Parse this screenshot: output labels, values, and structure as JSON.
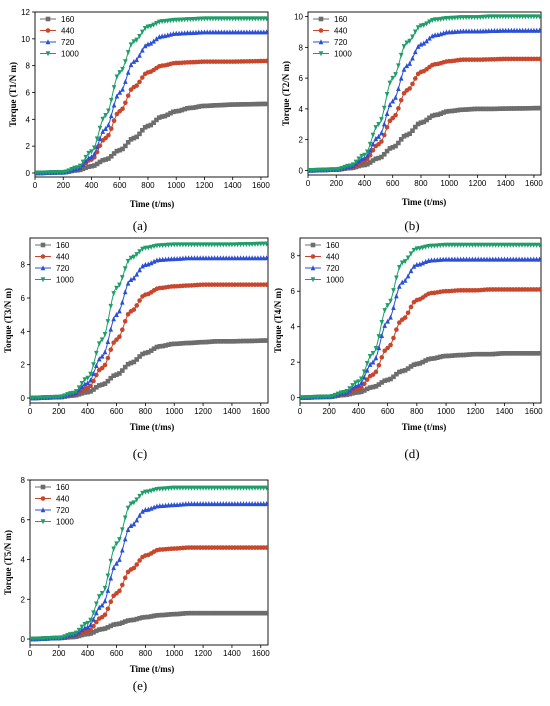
{
  "legend_title": "",
  "series_styles": [
    {
      "name": "160",
      "color": "#6d6d6d",
      "marker": "square"
    },
    {
      "name": "440",
      "color": "#c8462b",
      "marker": "circle"
    },
    {
      "name": "720",
      "color": "#2b4fd6",
      "marker": "triangle-up"
    },
    {
      "name": "1000",
      "color": "#1f9e6a",
      "marker": "triangle-down"
    }
  ],
  "chart_data": [
    {
      "type": "line",
      "panel_label": "(a)",
      "xlabel": "Time (t/ms)",
      "ylabel": "Torque (T1/N m)",
      "xlim": [
        0,
        1650
      ],
      "ylim": [
        -0.3,
        12
      ],
      "xticks": [
        0,
        200,
        400,
        600,
        800,
        1000,
        1200,
        1400,
        1600
      ],
      "yticks": [
        0,
        2,
        4,
        6,
        8,
        10,
        12
      ],
      "series": [
        {
          "name": "160",
          "x": [
            0,
            200,
            300,
            400,
            500,
            600,
            700,
            800,
            900,
            1000,
            1100,
            1200,
            1300,
            1400,
            1500,
            1650
          ],
          "y": [
            0,
            0.05,
            0.2,
            0.5,
            1.0,
            1.7,
            2.6,
            3.5,
            4.2,
            4.6,
            4.85,
            5.0,
            5.05,
            5.1,
            5.12,
            5.15
          ]
        },
        {
          "name": "440",
          "x": [
            0,
            200,
            300,
            400,
            500,
            600,
            700,
            800,
            900,
            1000,
            1100,
            1200,
            1300,
            1400,
            1500,
            1650
          ],
          "y": [
            0,
            0.05,
            0.3,
            1.0,
            2.6,
            4.6,
            6.4,
            7.5,
            8.0,
            8.2,
            8.25,
            8.3,
            8.3,
            8.3,
            8.32,
            8.35
          ]
        },
        {
          "name": "720",
          "x": [
            0,
            200,
            300,
            400,
            500,
            600,
            700,
            800,
            900,
            1000,
            1100,
            1200,
            1300,
            1400,
            1500,
            1650
          ],
          "y": [
            0,
            0.05,
            0.3,
            1.2,
            3.3,
            6.0,
            8.3,
            9.6,
            10.2,
            10.4,
            10.45,
            10.5,
            10.5,
            10.5,
            10.5,
            10.5
          ]
        },
        {
          "name": "1000",
          "x": [
            0,
            200,
            300,
            400,
            500,
            600,
            700,
            800,
            900,
            1000,
            1100,
            1200,
            1300,
            1400,
            1500,
            1650
          ],
          "y": [
            0,
            0.05,
            0.4,
            1.6,
            4.3,
            7.5,
            9.8,
            10.9,
            11.3,
            11.4,
            11.45,
            11.5,
            11.5,
            11.5,
            11.5,
            11.5
          ]
        }
      ]
    },
    {
      "type": "line",
      "panel_label": "(b)",
      "xlabel": "Time (t/ms)",
      "ylabel": "Torque (T2/N m)",
      "xlim": [
        0,
        1650
      ],
      "ylim": [
        -0.3,
        10.3
      ],
      "xticks": [
        0,
        200,
        400,
        600,
        800,
        1000,
        1200,
        1400,
        1600
      ],
      "yticks": [
        0,
        2,
        4,
        6,
        8,
        10
      ],
      "series": [
        {
          "name": "160",
          "x": [
            0,
            200,
            300,
            400,
            500,
            600,
            700,
            800,
            900,
            1000,
            1100,
            1200,
            1300,
            1400,
            1500,
            1650
          ],
          "y": [
            0,
            0.05,
            0.15,
            0.35,
            0.8,
            1.5,
            2.3,
            3.1,
            3.6,
            3.85,
            3.95,
            4.0,
            4.0,
            4.02,
            4.03,
            4.05
          ]
        },
        {
          "name": "440",
          "x": [
            0,
            200,
            300,
            400,
            500,
            600,
            700,
            800,
            900,
            1000,
            1100,
            1200,
            1300,
            1400,
            1500,
            1650
          ],
          "y": [
            0,
            0.05,
            0.2,
            0.6,
            1.7,
            3.4,
            5.2,
            6.4,
            6.9,
            7.1,
            7.2,
            7.2,
            7.22,
            7.25,
            7.25,
            7.25
          ]
        },
        {
          "name": "720",
          "x": [
            0,
            200,
            300,
            400,
            500,
            600,
            700,
            800,
            900,
            1000,
            1100,
            1200,
            1300,
            1400,
            1500,
            1650
          ],
          "y": [
            0,
            0.05,
            0.25,
            0.8,
            2.2,
            4.5,
            6.8,
            8.2,
            8.8,
            9.0,
            9.05,
            9.05,
            9.08,
            9.1,
            9.1,
            9.1
          ]
        },
        {
          "name": "1000",
          "x": [
            0,
            200,
            300,
            400,
            500,
            600,
            700,
            800,
            900,
            1000,
            1100,
            1200,
            1300,
            1400,
            1500,
            1650
          ],
          "y": [
            0,
            0.05,
            0.3,
            1.0,
            3.0,
            6.0,
            8.3,
            9.4,
            9.8,
            9.9,
            9.95,
            9.95,
            10.0,
            10.0,
            10.0,
            10.0
          ]
        }
      ]
    },
    {
      "type": "line",
      "panel_label": "(c)",
      "xlabel": "Time (t/ms)",
      "ylabel": "Torque (T3/N m)",
      "xlim": [
        0,
        1650
      ],
      "ylim": [
        -0.3,
        9.6
      ],
      "xticks": [
        0,
        200,
        400,
        600,
        800,
        1000,
        1200,
        1400,
        1600
      ],
      "yticks": [
        0,
        2,
        4,
        6,
        8
      ],
      "series": [
        {
          "name": "160",
          "x": [
            0,
            200,
            300,
            400,
            500,
            600,
            700,
            800,
            900,
            1000,
            1100,
            1200,
            1300,
            1400,
            1500,
            1650
          ],
          "y": [
            0,
            0.05,
            0.15,
            0.35,
            0.8,
            1.4,
            2.1,
            2.7,
            3.1,
            3.25,
            3.3,
            3.35,
            3.4,
            3.4,
            3.42,
            3.45
          ]
        },
        {
          "name": "440",
          "x": [
            0,
            200,
            300,
            400,
            500,
            600,
            700,
            800,
            900,
            1000,
            1100,
            1200,
            1300,
            1400,
            1500,
            1650
          ],
          "y": [
            0,
            0.05,
            0.2,
            0.6,
            1.8,
            3.5,
            5.2,
            6.2,
            6.6,
            6.7,
            6.75,
            6.8,
            6.8,
            6.8,
            6.8,
            6.8
          ]
        },
        {
          "name": "720",
          "x": [
            0,
            200,
            300,
            400,
            500,
            600,
            700,
            800,
            900,
            1000,
            1100,
            1200,
            1300,
            1400,
            1500,
            1650
          ],
          "y": [
            0,
            0.05,
            0.25,
            0.9,
            2.5,
            5.0,
            7.1,
            8.0,
            8.3,
            8.35,
            8.4,
            8.4,
            8.4,
            8.4,
            8.4,
            8.4
          ]
        },
        {
          "name": "1000",
          "x": [
            0,
            200,
            300,
            400,
            500,
            600,
            700,
            800,
            900,
            1000,
            1100,
            1200,
            1300,
            1400,
            1500,
            1650
          ],
          "y": [
            0,
            0.05,
            0.3,
            1.2,
            3.5,
            6.6,
            8.4,
            9.0,
            9.15,
            9.2,
            9.2,
            9.2,
            9.2,
            9.2,
            9.22,
            9.25
          ]
        }
      ]
    },
    {
      "type": "line",
      "panel_label": "(d)",
      "xlabel": "Time (t/ms)",
      "ylabel": "Torque (T4/N m)",
      "xlim": [
        0,
        1650
      ],
      "ylim": [
        -0.3,
        9.0
      ],
      "xticks": [
        0,
        200,
        400,
        600,
        800,
        1000,
        1200,
        1400,
        1600
      ],
      "yticks": [
        0,
        2,
        4,
        6,
        8
      ],
      "series": [
        {
          "name": "160",
          "x": [
            0,
            200,
            300,
            400,
            500,
            600,
            700,
            800,
            900,
            1000,
            1100,
            1200,
            1300,
            1400,
            1500,
            1650
          ],
          "y": [
            0,
            0.05,
            0.15,
            0.3,
            0.6,
            1.0,
            1.5,
            1.9,
            2.2,
            2.35,
            2.4,
            2.45,
            2.45,
            2.5,
            2.5,
            2.5
          ]
        },
        {
          "name": "440",
          "x": [
            0,
            200,
            300,
            400,
            500,
            600,
            700,
            800,
            900,
            1000,
            1100,
            1200,
            1300,
            1400,
            1500,
            1650
          ],
          "y": [
            0,
            0.05,
            0.2,
            0.5,
            1.3,
            2.8,
            4.4,
            5.5,
            5.9,
            6.0,
            6.05,
            6.05,
            6.1,
            6.1,
            6.1,
            6.1
          ]
        },
        {
          "name": "720",
          "x": [
            0,
            200,
            300,
            400,
            500,
            600,
            700,
            800,
            900,
            1000,
            1100,
            1200,
            1300,
            1400,
            1500,
            1650
          ],
          "y": [
            0,
            0.05,
            0.25,
            0.7,
            2.0,
            4.3,
            6.5,
            7.5,
            7.75,
            7.8,
            7.8,
            7.8,
            7.8,
            7.8,
            7.8,
            7.8
          ]
        },
        {
          "name": "1000",
          "x": [
            0,
            200,
            300,
            400,
            500,
            600,
            700,
            800,
            900,
            1000,
            1100,
            1200,
            1300,
            1400,
            1500,
            1650
          ],
          "y": [
            0,
            0.05,
            0.3,
            0.9,
            2.5,
            5.2,
            7.6,
            8.4,
            8.55,
            8.6,
            8.6,
            8.6,
            8.6,
            8.6,
            8.6,
            8.6
          ]
        }
      ]
    },
    {
      "type": "line",
      "panel_label": "(e)",
      "xlabel": "Time (t/ms)",
      "ylabel": "Torque (T5/N m)",
      "xlim": [
        0,
        1650
      ],
      "ylim": [
        -0.3,
        8.0
      ],
      "xticks": [
        0,
        200,
        400,
        600,
        800,
        1000,
        1200,
        1400,
        1600
      ],
      "yticks": [
        0,
        2,
        4,
        6,
        8
      ],
      "series": [
        {
          "name": "160",
          "x": [
            0,
            200,
            300,
            400,
            500,
            600,
            700,
            800,
            900,
            1000,
            1100,
            1200,
            1300,
            1400,
            1500,
            1650
          ],
          "y": [
            0,
            0.05,
            0.1,
            0.25,
            0.5,
            0.75,
            0.95,
            1.1,
            1.2,
            1.25,
            1.3,
            1.3,
            1.3,
            1.3,
            1.3,
            1.3
          ]
        },
        {
          "name": "440",
          "x": [
            0,
            200,
            300,
            400,
            500,
            600,
            700,
            800,
            900,
            1000,
            1100,
            1200,
            1300,
            1400,
            1500,
            1650
          ],
          "y": [
            0,
            0.05,
            0.15,
            0.4,
            1.1,
            2.3,
            3.5,
            4.2,
            4.5,
            4.55,
            4.6,
            4.6,
            4.6,
            4.6,
            4.6,
            4.6
          ]
        },
        {
          "name": "720",
          "x": [
            0,
            200,
            300,
            400,
            500,
            600,
            700,
            800,
            900,
            1000,
            1100,
            1200,
            1300,
            1400,
            1500,
            1650
          ],
          "y": [
            0,
            0.05,
            0.2,
            0.6,
            1.7,
            3.8,
            5.7,
            6.5,
            6.7,
            6.75,
            6.8,
            6.8,
            6.8,
            6.8,
            6.8,
            6.8
          ]
        },
        {
          "name": "1000",
          "x": [
            0,
            200,
            300,
            400,
            500,
            600,
            700,
            800,
            900,
            1000,
            1100,
            1200,
            1300,
            1400,
            1500,
            1650
          ],
          "y": [
            0,
            0.05,
            0.25,
            0.8,
            2.3,
            4.8,
            6.8,
            7.4,
            7.55,
            7.6,
            7.6,
            7.6,
            7.6,
            7.6,
            7.6,
            7.6
          ]
        }
      ]
    }
  ]
}
